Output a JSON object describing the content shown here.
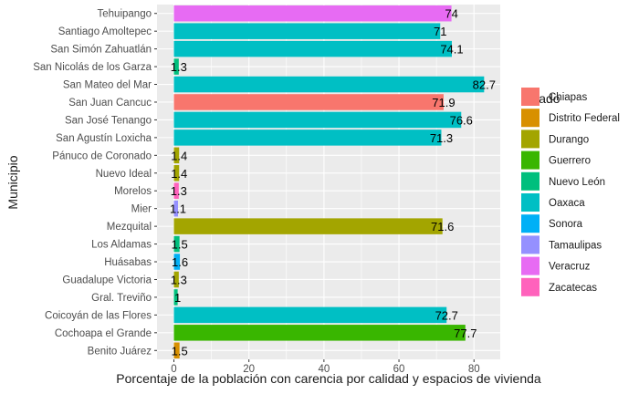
{
  "chart_data": {
    "type": "bar",
    "orientation": "horizontal",
    "xlabel": "Porcentaje de la población con carencia por calidad y espacios de vivienda",
    "ylabel": "Municipio",
    "xlim": [
      -4.5,
      87
    ],
    "xticks": [
      "0",
      "20",
      "40",
      "60",
      "80"
    ],
    "grid": true,
    "legend_position": "right",
    "legend": {
      "title": "Estado",
      "entries": [
        {
          "name": "Chiapas",
          "color": "#F8766D"
        },
        {
          "name": "Distrito Federal",
          "color": "#D89000"
        },
        {
          "name": "Durango",
          "color": "#A3A500"
        },
        {
          "name": "Guerrero",
          "color": "#39B600"
        },
        {
          "name": "Nuevo León",
          "color": "#00BF7D"
        },
        {
          "name": "Oaxaca",
          "color": "#00BFC4"
        },
        {
          "name": "Sonora",
          "color": "#00B0F6"
        },
        {
          "name": "Tamaulipas",
          "color": "#9590FF"
        },
        {
          "name": "Veracruz",
          "color": "#E76BF3"
        },
        {
          "name": "Zacatecas",
          "color": "#FF62BC"
        }
      ]
    },
    "bars": [
      {
        "municipio": "Tehuipango",
        "estado": "Veracruz",
        "value": 74.0,
        "label": "74"
      },
      {
        "municipio": "Santiago Amoltepec",
        "estado": "Oaxaca",
        "value": 71.0,
        "label": "71"
      },
      {
        "municipio": "San Simón Zahuatlán",
        "estado": "Oaxaca",
        "value": 74.1,
        "label": "74.1"
      },
      {
        "municipio": "San Nicolás de los Garza",
        "estado": "Nuevo León",
        "value": 1.3,
        "label": "1.3"
      },
      {
        "municipio": "San Mateo del Mar",
        "estado": "Oaxaca",
        "value": 82.7,
        "label": "82.7"
      },
      {
        "municipio": "San Juan Cancuc",
        "estado": "Chiapas",
        "value": 71.9,
        "label": "71.9"
      },
      {
        "municipio": "San José Tenango",
        "estado": "Oaxaca",
        "value": 76.6,
        "label": "76.6"
      },
      {
        "municipio": "San Agustín Loxicha",
        "estado": "Oaxaca",
        "value": 71.3,
        "label": "71.3"
      },
      {
        "municipio": "Pánuco de Coronado",
        "estado": "Durango",
        "value": 1.4,
        "label": "1.4"
      },
      {
        "municipio": "Nuevo Ideal",
        "estado": "Durango",
        "value": 1.4,
        "label": "1.4"
      },
      {
        "municipio": "Morelos",
        "estado": "Zacatecas",
        "value": 1.3,
        "label": "1.3"
      },
      {
        "municipio": "Mier",
        "estado": "Tamaulipas",
        "value": 1.1,
        "label": "1.1"
      },
      {
        "municipio": "Mezquital",
        "estado": "Durango",
        "value": 71.6,
        "label": "71.6"
      },
      {
        "municipio": "Los Aldamas",
        "estado": "Nuevo León",
        "value": 1.5,
        "label": "1.5"
      },
      {
        "municipio": "Huásabas",
        "estado": "Sonora",
        "value": 1.6,
        "label": "1.6"
      },
      {
        "municipio": "Guadalupe Victoria",
        "estado": "Durango",
        "value": 1.3,
        "label": "1.3"
      },
      {
        "municipio": "Gral. Treviño",
        "estado": "Nuevo León",
        "value": 1.0,
        "label": "1"
      },
      {
        "municipio": "Coicoyán de las Flores",
        "estado": "Oaxaca",
        "value": 72.7,
        "label": "72.7"
      },
      {
        "municipio": "Cochoapa el Grande",
        "estado": "Guerrero",
        "value": 77.7,
        "label": "77.7"
      },
      {
        "municipio": "Benito Juárez",
        "estado": "Distrito Federal",
        "value": 1.5,
        "label": "1.5"
      }
    ]
  }
}
